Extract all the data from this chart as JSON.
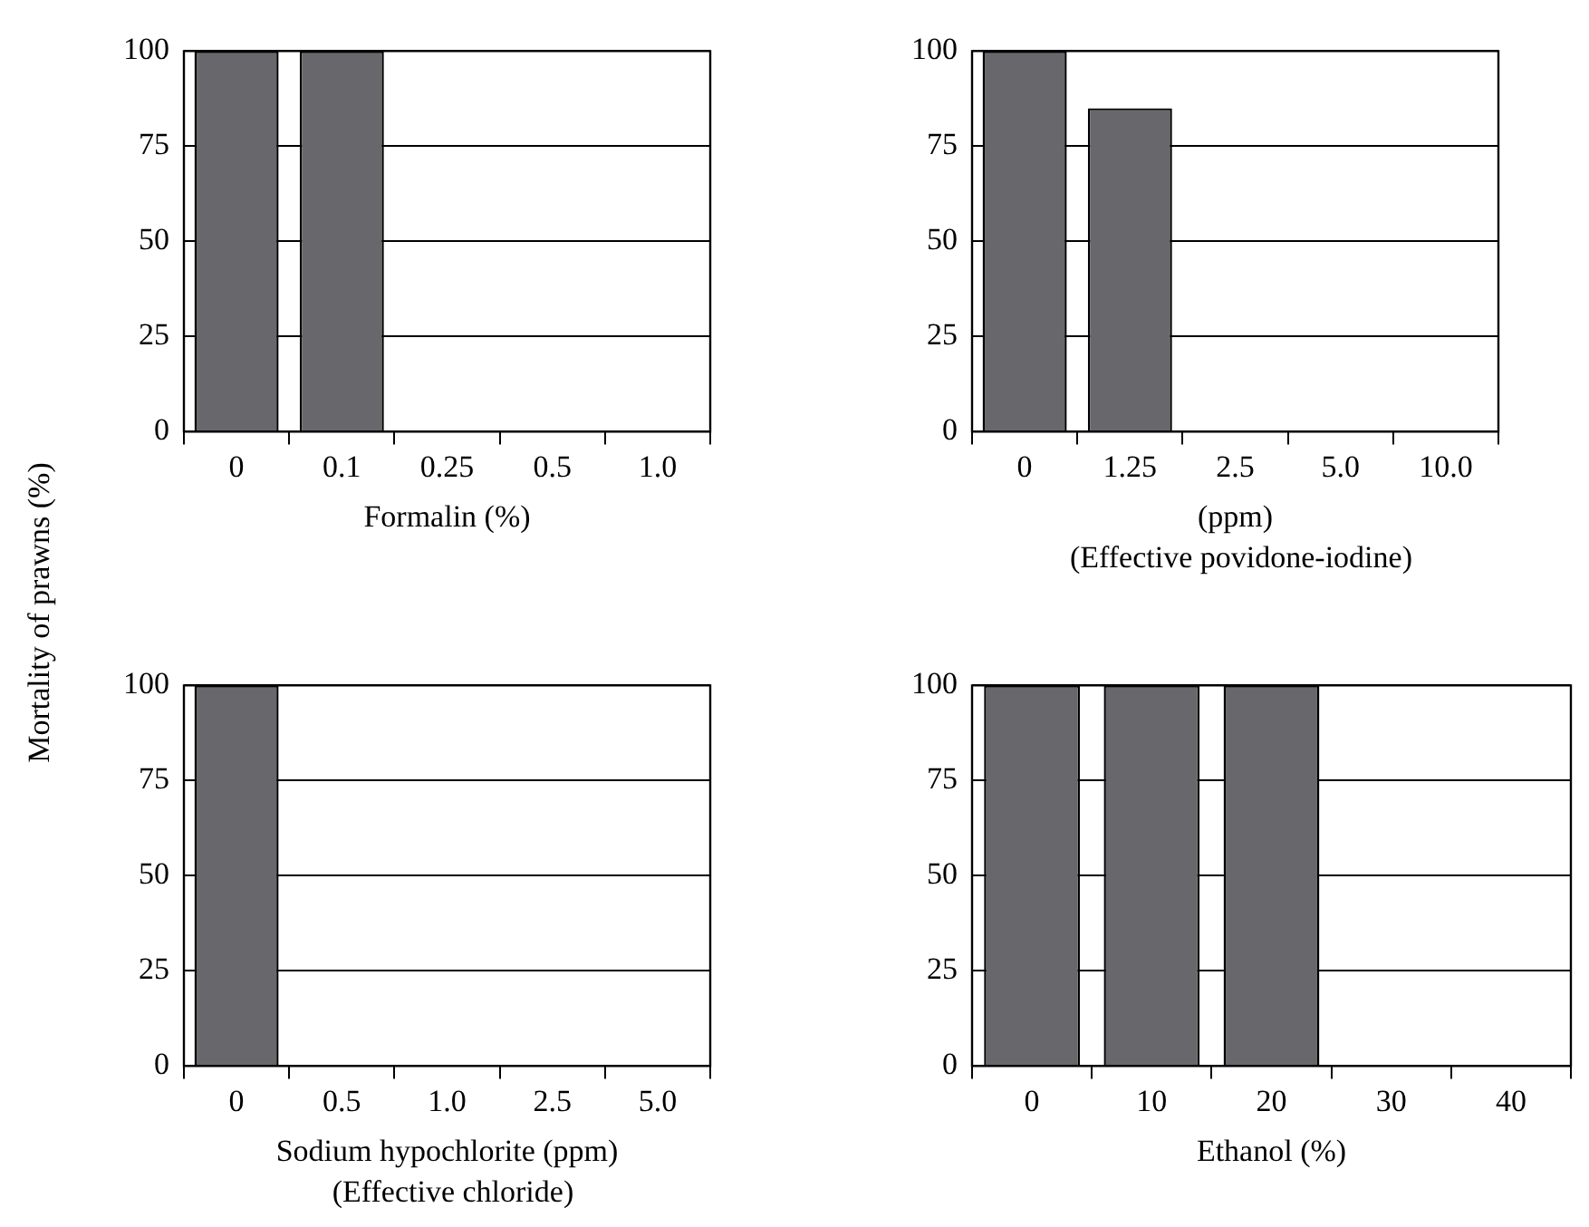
{
  "chart_data": [
    {
      "type": "bar",
      "ylabel": "Mortality of prawns (%)",
      "xlabel": "Formalin (%)",
      "categories": [
        "0",
        "0.1",
        "0.25",
        "0.5",
        "1.0"
      ],
      "values": [
        100,
        100,
        0,
        0,
        0
      ],
      "color": "#68686c",
      "ylim": [
        0,
        100
      ],
      "yticks": [
        0,
        25,
        50,
        75,
        100
      ],
      "grid": "y",
      "legend": false
    },
    {
      "type": "bar",
      "xlabel": "(ppm)",
      "annotations": [
        "(Effective povidone-iodine)"
      ],
      "categories": [
        "0",
        "1.25",
        "2.5",
        "5.0",
        "10.0"
      ],
      "values": [
        100,
        85,
        0,
        0,
        0
      ],
      "color": "#68686c",
      "ylim": [
        0,
        100
      ],
      "yticks": [
        0,
        25,
        50,
        75,
        100
      ],
      "grid": "y",
      "legend": false
    },
    {
      "type": "bar",
      "xlabel": "Sodium hypochlorite (ppm)",
      "annotations": [
        "(Effective chloride)"
      ],
      "categories": [
        "0",
        "0.5",
        "1.0",
        "2.5",
        "5.0"
      ],
      "values": [
        100,
        0,
        0,
        0,
        0
      ],
      "color": "#68686c",
      "ylim": [
        0,
        100
      ],
      "yticks": [
        0,
        25,
        50,
        75,
        100
      ],
      "grid": "y",
      "legend": false
    },
    {
      "type": "bar",
      "xlabel": "Ethanol (%)",
      "categories": [
        "0",
        "10",
        "20",
        "30",
        "40"
      ],
      "values": [
        100,
        100,
        100,
        0,
        0
      ],
      "color": "#68686c",
      "ylim": [
        0,
        100
      ],
      "yticks": [
        0,
        25,
        50,
        75,
        100
      ],
      "grid": "y",
      "legend": false
    }
  ]
}
